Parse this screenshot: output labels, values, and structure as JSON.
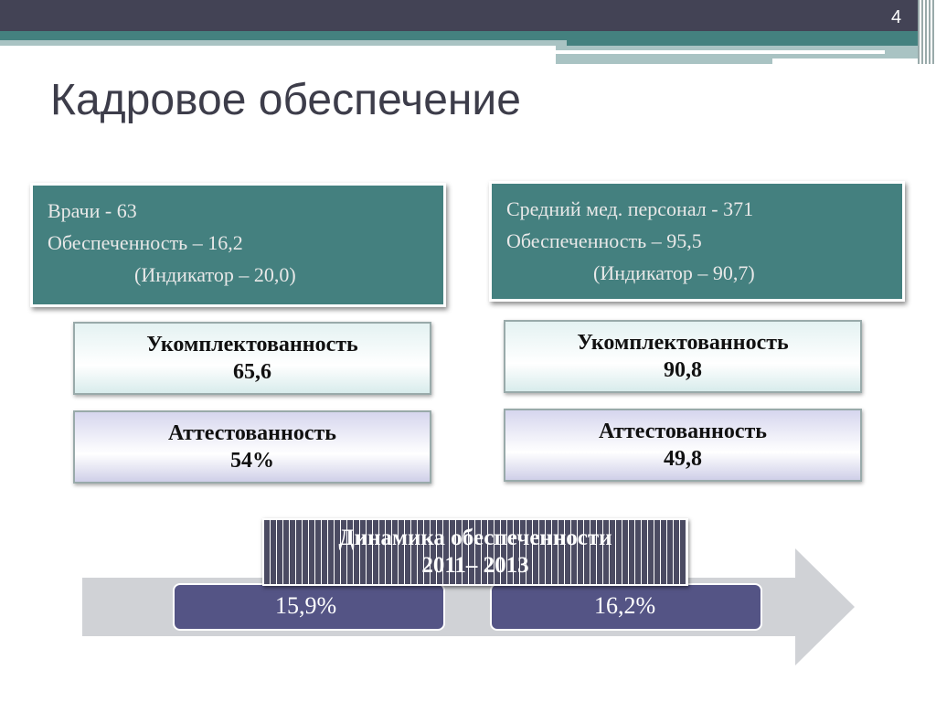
{
  "slide": {
    "page_number": "4",
    "title": "Кадровое обеспечение"
  },
  "doctors": {
    "line1": "Врачи  - 63",
    "line2": "Обеспеченность – 16,2",
    "line3": "(Индикатор – 20,0)",
    "staffing_label": "Укомплектованность",
    "staffing_value": "65,6",
    "cert_label": "Аттестованность",
    "cert_value": "54%"
  },
  "nurses": {
    "line1": "Средний мед. персонал - 371",
    "line2": "Обеспеченность – 95,5",
    "line3": "(Индикатор – 90,7)",
    "staffing_label": "Укомплектованность",
    "staffing_value": "90,8",
    "cert_label": "Аттестованность",
    "cert_value": "49,8"
  },
  "dynamics": {
    "title_line1": "Динамика обеспеченности",
    "title_line2": "2011– 2013",
    "value_2011": "15,9%",
    "value_2013": "16,2%"
  },
  "colors": {
    "dark": "#434355",
    "teal": "#44807f",
    "purple": "#545485"
  }
}
